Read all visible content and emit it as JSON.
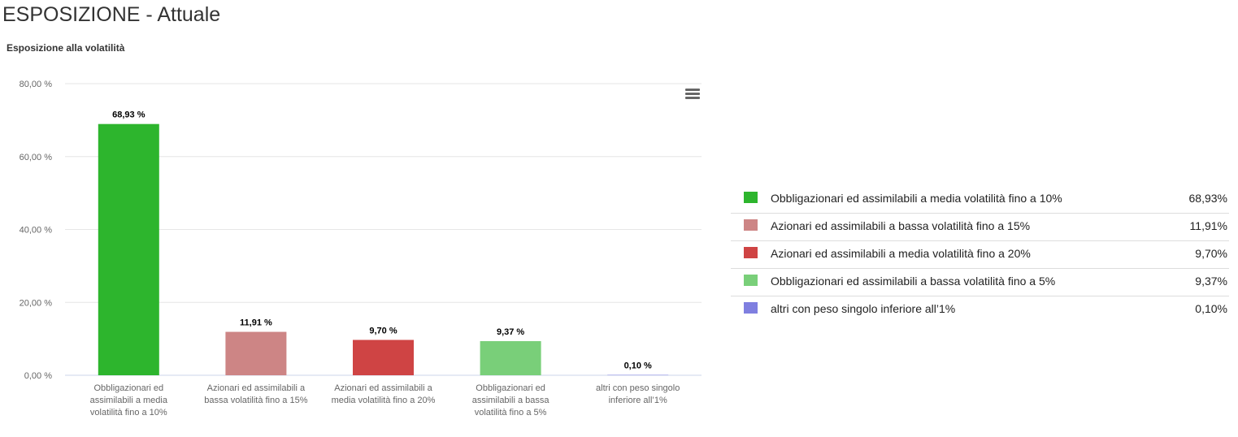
{
  "page": {
    "title": "ESPOSIZIONE - Attuale",
    "subtitle": "Esposizione alla volatilità"
  },
  "menu": {
    "icon": "hamburger-menu-icon"
  },
  "chart_data": {
    "type": "bar",
    "title": "Esposizione alla volatilità",
    "xlabel": "",
    "ylabel": "",
    "ylim": [
      0,
      80
    ],
    "yticks": [
      0,
      20,
      40,
      60,
      80
    ],
    "ytick_labels": [
      "0,00 %",
      "20,00 %",
      "40,00 %",
      "60,00 %",
      "80,00 %"
    ],
    "grid": true,
    "legend_position": "right",
    "categories": [
      [
        "Obbligazionari ed",
        "assimilabili a media",
        "volatilità fino a 10%"
      ],
      [
        "Azionari ed assimilabili a",
        "bassa volatilità fino a 15%"
      ],
      [
        "Azionari ed assimilabili a",
        "media volatilità fino a 20%"
      ],
      [
        "Obbligazionari ed",
        "assimilabili a bassa",
        "volatilità fino a 5%"
      ],
      [
        "altri con peso singolo",
        "inferiore all’1%"
      ]
    ],
    "values": [
      68.93,
      11.91,
      9.7,
      9.37,
      0.1
    ],
    "data_labels": [
      "68,93 %",
      "11,91 %",
      "9,70 %",
      "9,37 %",
      "0,10 %"
    ],
    "colors": [
      "#2db52d",
      "#cd8585",
      "#cf4444",
      "#79cf79",
      "#7f7fe0"
    ]
  },
  "legend": {
    "items": [
      {
        "label": "Obbligazionari ed assimilabili a media volatilità fino a 10%",
        "value": "68,93%",
        "color": "#2db52d"
      },
      {
        "label": "Azionari ed assimilabili a bassa volatilità fino a 15%",
        "value": "11,91%",
        "color": "#cd8585"
      },
      {
        "label": "Azionari ed assimilabili a media volatilità fino a 20%",
        "value": "9,70%",
        "color": "#cf4444"
      },
      {
        "label": "Obbligazionari ed assimilabili a bassa volatilità fino a 5%",
        "value": "9,37%",
        "color": "#79cf79"
      },
      {
        "label": "altri con peso singolo inferiore all’1%",
        "value": "0,10%",
        "color": "#7f7fe0"
      }
    ]
  }
}
